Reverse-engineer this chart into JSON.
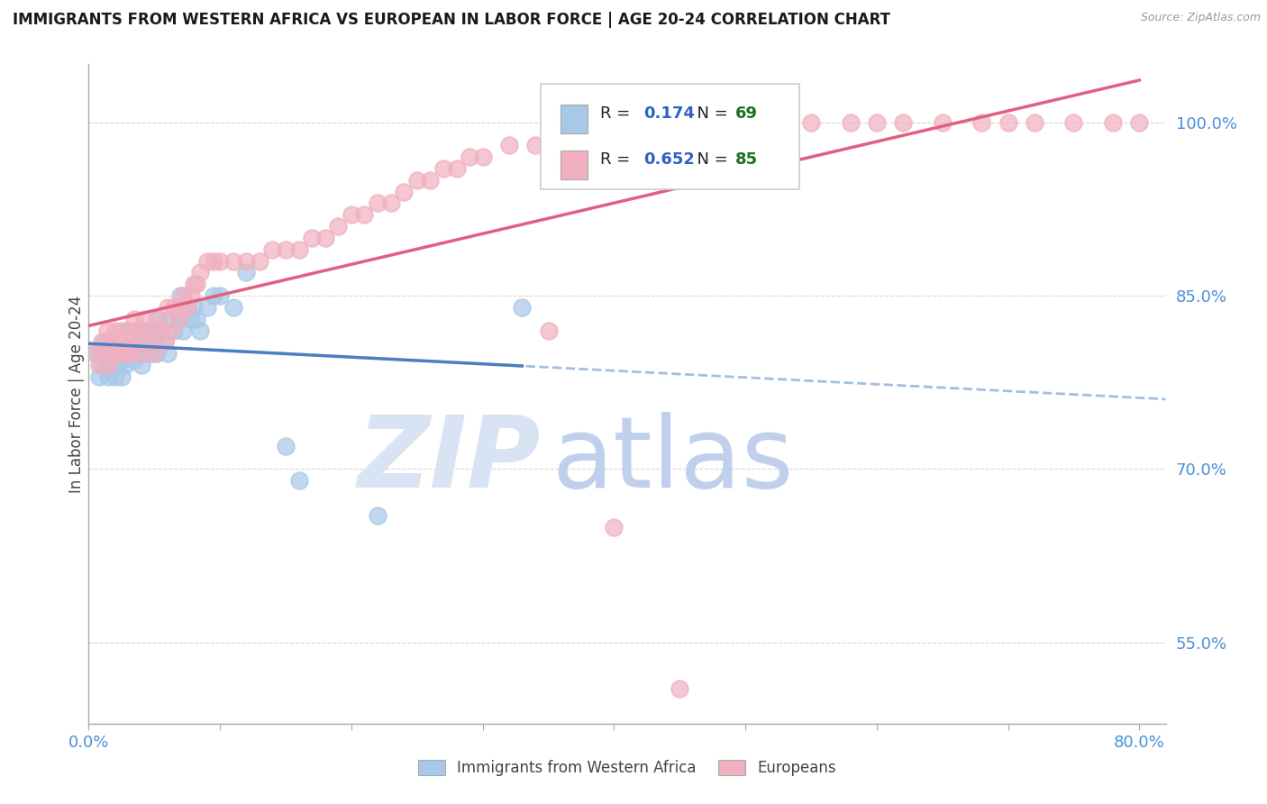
{
  "title": "IMMIGRANTS FROM WESTERN AFRICA VS EUROPEAN IN LABOR FORCE | AGE 20-24 CORRELATION CHART",
  "source": "Source: ZipAtlas.com",
  "ylabel": "In Labor Force | Age 20-24",
  "xlim": [
    0.0,
    0.82
  ],
  "ylim": [
    0.48,
    1.05
  ],
  "yticks": [
    0.55,
    0.7,
    0.85,
    1.0
  ],
  "ytick_labels": [
    "55.0%",
    "70.0%",
    "85.0%",
    "100.0%"
  ],
  "blue_R": 0.174,
  "blue_N": 69,
  "pink_R": 0.652,
  "pink_N": 85,
  "blue_color": "#a8c8e8",
  "pink_color": "#f0b0c0",
  "blue_line_color": "#4a7fc0",
  "pink_line_color": "#e06080",
  "watermark_ZIP_color": "#d0ddf0",
  "watermark_atlas_color": "#c8d8f0",
  "title_color": "#1a1a1a",
  "axis_color": "#4a90d9",
  "legend_R_color": "#3060c0",
  "legend_N_color": "#207020",
  "blue_scatter_x": [
    0.005,
    0.008,
    0.01,
    0.01,
    0.012,
    0.013,
    0.014,
    0.015,
    0.015,
    0.016,
    0.018,
    0.018,
    0.019,
    0.02,
    0.02,
    0.02,
    0.021,
    0.022,
    0.023,
    0.024,
    0.025,
    0.025,
    0.025,
    0.026,
    0.027,
    0.028,
    0.03,
    0.03,
    0.03,
    0.032,
    0.033,
    0.035,
    0.035,
    0.036,
    0.038,
    0.04,
    0.04,
    0.041,
    0.042,
    0.043,
    0.045,
    0.046,
    0.048,
    0.05,
    0.05,
    0.052,
    0.053,
    0.055,
    0.058,
    0.06,
    0.062,
    0.065,
    0.068,
    0.07,
    0.072,
    0.075,
    0.078,
    0.08,
    0.082,
    0.085,
    0.09,
    0.095,
    0.1,
    0.11,
    0.12,
    0.15,
    0.16,
    0.22,
    0.33
  ],
  "blue_scatter_y": [
    0.8,
    0.78,
    0.79,
    0.8,
    0.81,
    0.795,
    0.785,
    0.805,
    0.78,
    0.8,
    0.79,
    0.81,
    0.8,
    0.78,
    0.795,
    0.81,
    0.8,
    0.79,
    0.8,
    0.81,
    0.795,
    0.8,
    0.78,
    0.81,
    0.8,
    0.79,
    0.8,
    0.81,
    0.82,
    0.8,
    0.81,
    0.795,
    0.8,
    0.82,
    0.81,
    0.79,
    0.8,
    0.82,
    0.81,
    0.8,
    0.82,
    0.81,
    0.8,
    0.82,
    0.81,
    0.8,
    0.83,
    0.82,
    0.81,
    0.8,
    0.83,
    0.82,
    0.83,
    0.85,
    0.82,
    0.84,
    0.83,
    0.84,
    0.83,
    0.82,
    0.84,
    0.85,
    0.85,
    0.84,
    0.87,
    0.72,
    0.69,
    0.66,
    0.84
  ],
  "pink_scatter_x": [
    0.005,
    0.008,
    0.01,
    0.012,
    0.014,
    0.015,
    0.016,
    0.018,
    0.02,
    0.02,
    0.022,
    0.023,
    0.025,
    0.026,
    0.028,
    0.03,
    0.03,
    0.032,
    0.035,
    0.036,
    0.038,
    0.04,
    0.042,
    0.045,
    0.048,
    0.05,
    0.052,
    0.055,
    0.058,
    0.06,
    0.062,
    0.065,
    0.068,
    0.07,
    0.072,
    0.075,
    0.078,
    0.08,
    0.082,
    0.085,
    0.09,
    0.095,
    0.1,
    0.11,
    0.12,
    0.13,
    0.14,
    0.15,
    0.16,
    0.17,
    0.18,
    0.19,
    0.2,
    0.21,
    0.22,
    0.23,
    0.24,
    0.25,
    0.26,
    0.27,
    0.28,
    0.29,
    0.3,
    0.32,
    0.34,
    0.36,
    0.38,
    0.4,
    0.42,
    0.45,
    0.5,
    0.55,
    0.58,
    0.6,
    0.62,
    0.65,
    0.68,
    0.7,
    0.72,
    0.75,
    0.78,
    0.8,
    0.35,
    0.4,
    0.45
  ],
  "pink_scatter_y": [
    0.8,
    0.79,
    0.81,
    0.8,
    0.82,
    0.79,
    0.8,
    0.81,
    0.8,
    0.82,
    0.81,
    0.8,
    0.82,
    0.81,
    0.8,
    0.82,
    0.81,
    0.8,
    0.83,
    0.81,
    0.82,
    0.8,
    0.83,
    0.82,
    0.81,
    0.8,
    0.83,
    0.82,
    0.81,
    0.84,
    0.82,
    0.84,
    0.83,
    0.84,
    0.85,
    0.84,
    0.85,
    0.86,
    0.86,
    0.87,
    0.88,
    0.88,
    0.88,
    0.88,
    0.88,
    0.88,
    0.89,
    0.89,
    0.89,
    0.9,
    0.9,
    0.91,
    0.92,
    0.92,
    0.93,
    0.93,
    0.94,
    0.95,
    0.95,
    0.96,
    0.96,
    0.97,
    0.97,
    0.98,
    0.98,
    0.99,
    0.99,
    1.0,
    1.0,
    1.0,
    1.0,
    1.0,
    1.0,
    1.0,
    1.0,
    1.0,
    1.0,
    1.0,
    1.0,
    1.0,
    1.0,
    1.0,
    0.82,
    0.65,
    0.51
  ]
}
